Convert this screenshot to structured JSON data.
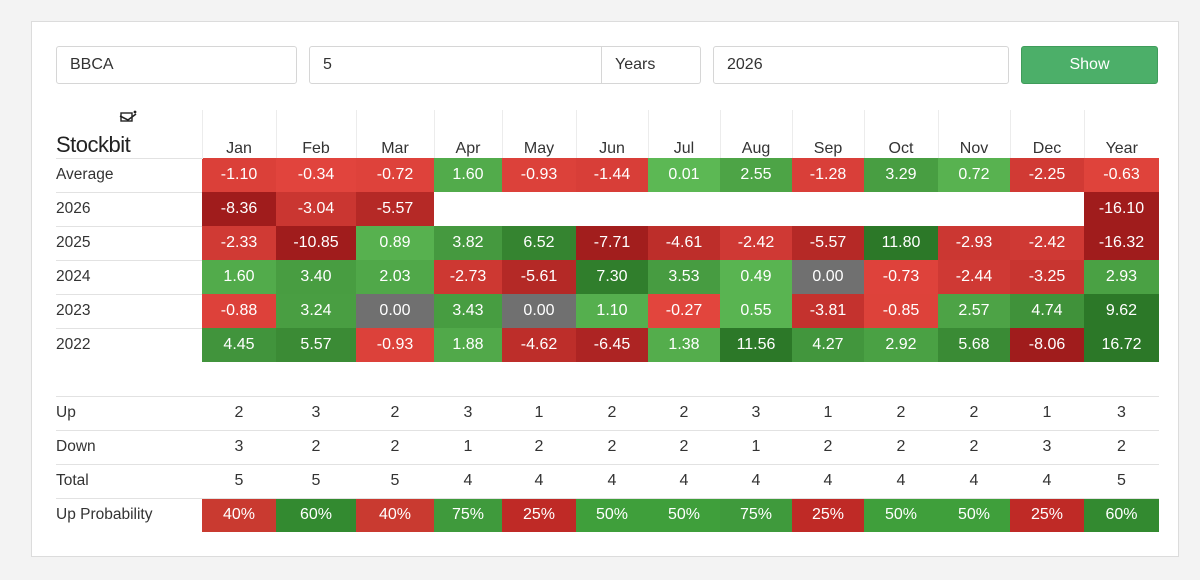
{
  "controls": {
    "symbol": "BBCA",
    "count": "5",
    "unit": "Years",
    "year": "2026",
    "show_label": "Show"
  },
  "brand": {
    "name": "Stockbit"
  },
  "months": [
    "Jan",
    "Feb",
    "Mar",
    "Apr",
    "May",
    "Jun",
    "Jul",
    "Aug",
    "Sep",
    "Oct",
    "Nov",
    "Dec",
    "Year"
  ],
  "rows": [
    {
      "label": "Average",
      "values": [
        "-1.10",
        "-0.34",
        "-0.72",
        "1.60",
        "-0.93",
        "-1.44",
        "0.01",
        "2.55",
        "-1.28",
        "3.29",
        "0.72",
        "-2.25",
        "-0.63"
      ]
    },
    {
      "label": "2026",
      "values": [
        "-8.36",
        "-3.04",
        "-5.57",
        "",
        "",
        "",
        "",
        "",
        "",
        "",
        "",
        "",
        "-16.10"
      ]
    },
    {
      "label": "2025",
      "values": [
        "-2.33",
        "-10.85",
        "0.89",
        "3.82",
        "6.52",
        "-7.71",
        "-4.61",
        "-2.42",
        "-5.57",
        "11.80",
        "-2.93",
        "-2.42",
        "-16.32"
      ]
    },
    {
      "label": "2024",
      "values": [
        "1.60",
        "3.40",
        "2.03",
        "-2.73",
        "-5.61",
        "7.30",
        "3.53",
        "0.49",
        "0.00",
        "-0.73",
        "-2.44",
        "-3.25",
        "2.93"
      ]
    },
    {
      "label": "2023",
      "values": [
        "-0.88",
        "3.24",
        "0.00",
        "3.43",
        "0.00",
        "1.10",
        "-0.27",
        "0.55",
        "-3.81",
        "-0.85",
        "2.57",
        "4.74",
        "9.62"
      ]
    },
    {
      "label": "2022",
      "values": [
        "4.45",
        "5.57",
        "-0.93",
        "1.88",
        "-4.62",
        "-6.45",
        "1.38",
        "11.56",
        "4.27",
        "2.92",
        "5.68",
        "-8.06",
        "16.72"
      ]
    }
  ],
  "stats": [
    {
      "label": "Up",
      "values": [
        "2",
        "3",
        "2",
        "3",
        "1",
        "2",
        "2",
        "3",
        "1",
        "2",
        "2",
        "1",
        "3"
      ]
    },
    {
      "label": "Down",
      "values": [
        "3",
        "2",
        "2",
        "1",
        "2",
        "2",
        "2",
        "1",
        "2",
        "2",
        "2",
        "3",
        "2"
      ]
    },
    {
      "label": "Total",
      "values": [
        "5",
        "5",
        "5",
        "4",
        "4",
        "4",
        "4",
        "4",
        "4",
        "4",
        "4",
        "4",
        "5"
      ]
    }
  ],
  "probability": {
    "label": "Up Probability",
    "values": [
      "40%",
      "60%",
      "40%",
      "75%",
      "25%",
      "50%",
      "50%",
      "75%",
      "25%",
      "50%",
      "50%",
      "25%",
      "60%"
    ]
  },
  "colors": {
    "positive": "#4caf50",
    "negative": "#c62828",
    "neutral": "#707070",
    "button": "#4caf69"
  }
}
